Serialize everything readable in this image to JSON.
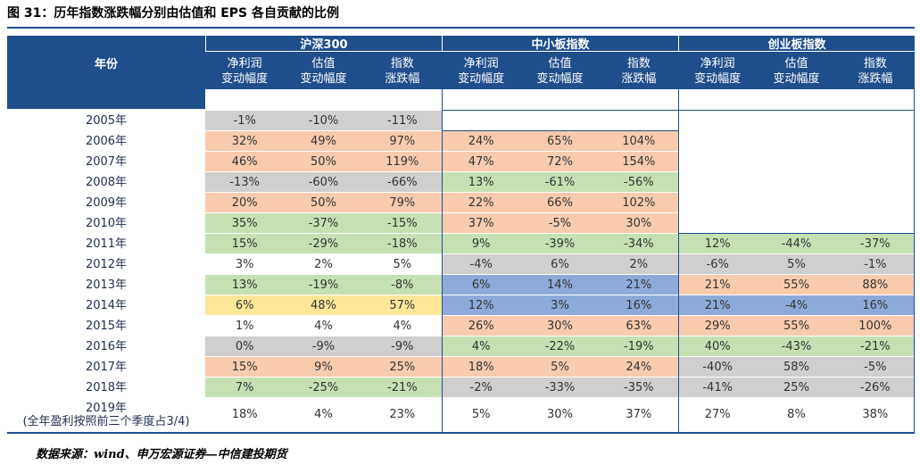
{
  "title": "图 31：历年指数涨跌幅分别由估值和 EPS 各自贡献的比例",
  "table": {
    "year_header": "年份",
    "groups": [
      "沪深300",
      "中小板指数",
      "创业板指数"
    ],
    "subheaders": [
      [
        "净利润",
        "变动幅度"
      ],
      [
        "估值",
        "变动幅度"
      ],
      [
        "指数",
        "涨跌幅"
      ],
      [
        "净利润",
        "变动幅度"
      ],
      [
        "估值",
        "变动幅度"
      ],
      [
        "指数",
        "涨跌幅"
      ],
      [
        "净利润",
        "变动幅度"
      ],
      [
        "估值",
        "变动幅度"
      ],
      [
        "指数",
        "涨跌幅"
      ]
    ],
    "rows": [
      {
        "year": "2005年",
        "values": [
          "-1%",
          "-10%",
          "-11%",
          null,
          null,
          null,
          null,
          null,
          null
        ],
        "fills": [
          "#d0cece",
          null,
          null
        ]
      },
      {
        "year": "2006年",
        "values": [
          "32%",
          "49%",
          "97%",
          "24%",
          "65%",
          "104%",
          null,
          null,
          null
        ],
        "fills": [
          "#f8cbad",
          "#f8cbad",
          null
        ]
      },
      {
        "year": "2007年",
        "values": [
          "46%",
          "50%",
          "119%",
          "47%",
          "72%",
          "154%",
          null,
          null,
          null
        ],
        "fills": [
          "#f8cbad",
          "#f8cbad",
          null
        ]
      },
      {
        "year": "2008年",
        "values": [
          "-13%",
          "-60%",
          "-66%",
          "13%",
          "-61%",
          "-56%",
          null,
          null,
          null
        ],
        "fills": [
          "#d0cece",
          "#c6e0b4",
          null
        ]
      },
      {
        "year": "2009年",
        "values": [
          "20%",
          "50%",
          "79%",
          "22%",
          "66%",
          "102%",
          null,
          null,
          null
        ],
        "fills": [
          "#f8cbad",
          "#f8cbad",
          null
        ]
      },
      {
        "year": "2010年",
        "values": [
          "35%",
          "-37%",
          "-15%",
          "37%",
          "-5%",
          "30%",
          null,
          null,
          null
        ],
        "fills": [
          "#c6e0b4",
          "#f8cbad",
          null
        ]
      },
      {
        "year": "2011年",
        "values": [
          "15%",
          "-29%",
          "-18%",
          "9%",
          "-39%",
          "-34%",
          "12%",
          "-44%",
          "-37%"
        ],
        "fills": [
          "#c6e0b4",
          "#c6e0b4",
          "#c6e0b4"
        ]
      },
      {
        "year": "2012年",
        "values": [
          "3%",
          "2%",
          "5%",
          "-4%",
          "6%",
          "2%",
          "-6%",
          "5%",
          "-1%"
        ],
        "fills": [
          "#ffffff",
          "#d0cece",
          "#d0cece"
        ]
      },
      {
        "year": "2013年",
        "values": [
          "13%",
          "-19%",
          "-8%",
          "6%",
          "14%",
          "21%",
          "21%",
          "55%",
          "88%"
        ],
        "fills": [
          "#c6e0b4",
          "#8eaadb",
          "#f8cbad"
        ]
      },
      {
        "year": "2014年",
        "values": [
          "6%",
          "48%",
          "57%",
          "12%",
          "3%",
          "16%",
          "21%",
          "-4%",
          "16%"
        ],
        "fills": [
          "#ffe699",
          "#8eaadb",
          "#8eaadb"
        ]
      },
      {
        "year": "2015年",
        "values": [
          "1%",
          "4%",
          "4%",
          "26%",
          "30%",
          "63%",
          "29%",
          "55%",
          "100%"
        ],
        "fills": [
          "#ffffff",
          "#f8cbad",
          "#f8cbad"
        ]
      },
      {
        "year": "2016年",
        "values": [
          "0%",
          "-9%",
          "-9%",
          "4%",
          "-22%",
          "-19%",
          "40%",
          "-43%",
          "-21%"
        ],
        "fills": [
          "#d0cece",
          "#c6e0b4",
          "#c6e0b4"
        ]
      },
      {
        "year": "2017年",
        "values": [
          "15%",
          "9%",
          "25%",
          "18%",
          "5%",
          "24%",
          "-40%",
          "58%",
          "-5%"
        ],
        "fills": [
          "#f8cbad",
          "#f8cbad",
          "#d0cece"
        ]
      },
      {
        "year": "2018年",
        "values": [
          "7%",
          "-25%",
          "-21%",
          "-2%",
          "-33%",
          "-35%",
          "-41%",
          "25%",
          "-26%"
        ],
        "fills": [
          "#c6e0b4",
          "#d0cece",
          "#d0cece"
        ]
      },
      {
        "year": "2019年",
        "note": "(全年盈利按照前三个季度占3/4)",
        "values": [
          "18%",
          "4%",
          "23%",
          "5%",
          "30%",
          "37%",
          "27%",
          "8%",
          "38%"
        ],
        "fills": [
          "#ffffff",
          "#ffffff",
          "#ffffff"
        ]
      }
    ]
  },
  "source": "数据来源：wind、申万宏源证券—中信建投期货"
}
